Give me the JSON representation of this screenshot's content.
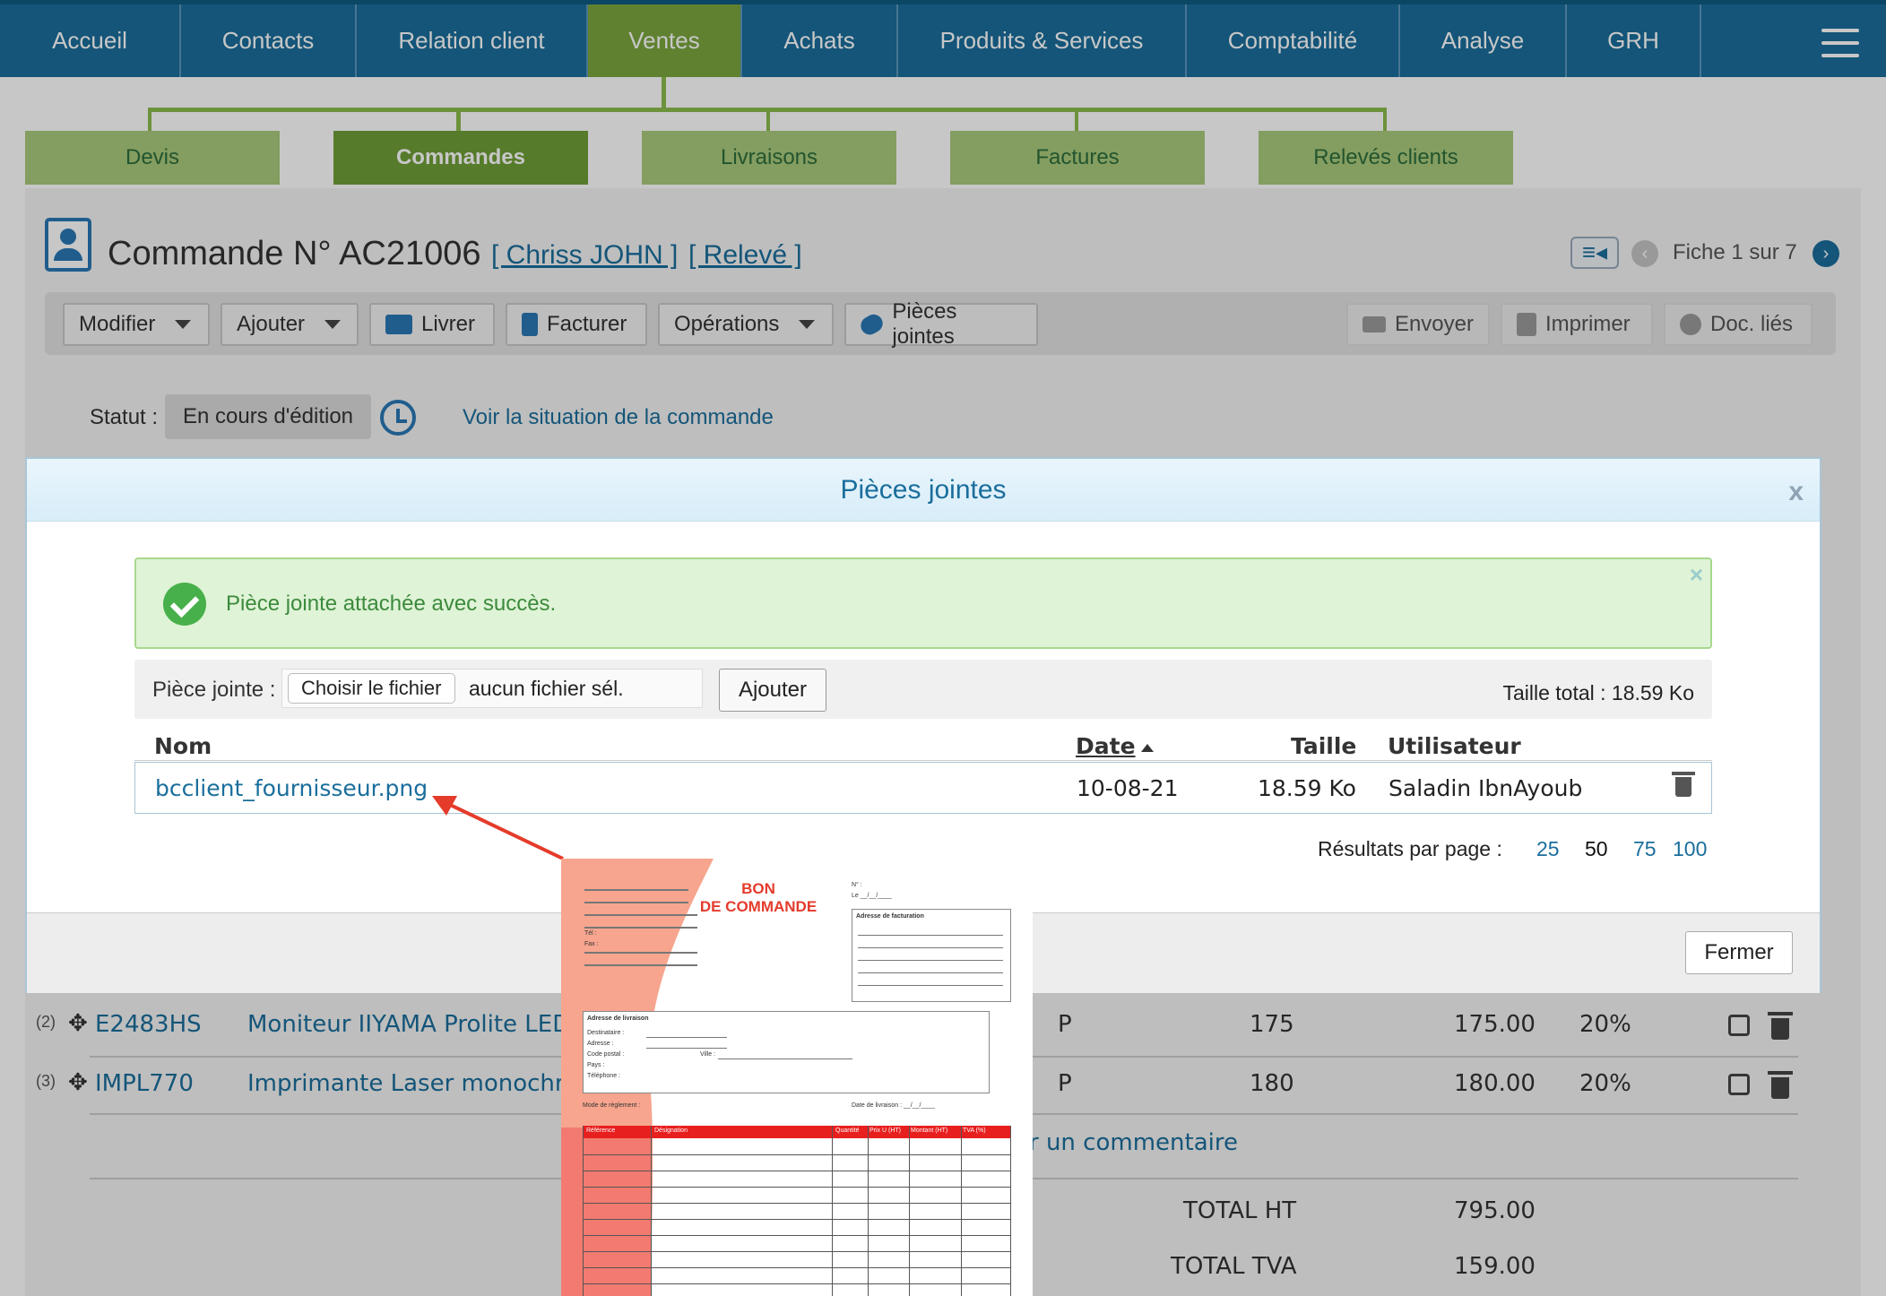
{
  "nav": {
    "items": [
      {
        "label": "Accueil",
        "active": false
      },
      {
        "label": "Contacts",
        "active": false
      },
      {
        "label": "Relation client",
        "active": false
      },
      {
        "label": "Ventes",
        "active": true
      },
      {
        "label": "Achats",
        "active": false
      },
      {
        "label": "Produits & Services",
        "active": false
      },
      {
        "label": "Comptabilité",
        "active": false
      },
      {
        "label": "Analyse",
        "active": false
      },
      {
        "label": "GRH",
        "active": false
      }
    ],
    "menu_icon": "hamburger-menu-icon"
  },
  "subtabs": [
    {
      "label": "Devis",
      "active": false
    },
    {
      "label": "Commandes",
      "active": true
    },
    {
      "label": "Livraisons",
      "active": false
    },
    {
      "label": "Factures",
      "active": false
    },
    {
      "label": "Relevés clients",
      "active": false
    }
  ],
  "page": {
    "title": "Commande N° AC21006",
    "client_link": "[ Chriss JOHN ]",
    "releve_link": "[ Relevé ]",
    "record_nav": "Fiche 1 sur 7"
  },
  "toolbar": {
    "modifier": "Modifier",
    "ajouter": "Ajouter",
    "livrer": "Livrer",
    "facturer": "Facturer",
    "operations": "Opérations",
    "pieces_jointes": "Pièces jointes",
    "envoyer": "Envoyer",
    "imprimer": "Imprimer",
    "doc_lies": "Doc. liés"
  },
  "status": {
    "label": "Statut :",
    "value": "En cours d'édition",
    "link": "Voir la situation de la commande"
  },
  "order_lines": [
    {
      "num": "(2)",
      "ref": "E2483HS",
      "designation": "Moniteur IIYAMA Prolite LED –",
      "type": "P",
      "price": "175",
      "total": "175.00",
      "tva": "20%"
    },
    {
      "num": "(3)",
      "ref": "IMPL770",
      "designation": "Imprimante Laser monochrom",
      "type": "P",
      "price": "180",
      "total": "180.00",
      "tva": "20%"
    }
  ],
  "comment_link_fragment": "r un commentaire",
  "totals": [
    {
      "label": "TOTAL HT",
      "value": "795.00"
    },
    {
      "label": "TOTAL TVA",
      "value": "159.00"
    }
  ],
  "modal": {
    "title": "Pièces jointes",
    "close": "x",
    "alert_text": "Pièce jointe attachée avec succès.",
    "alert_close": "×",
    "upload_label": "Pièce jointe :",
    "choose_file": "Choisir le fichier",
    "no_file": "aucun fichier sél.",
    "add_button": "Ajouter",
    "total_size": "Taille total : 18.59 Ko",
    "columns": {
      "name": "Nom",
      "date": "Date",
      "size": "Taille",
      "user": "Utilisateur"
    },
    "files": [
      {
        "name": "bcclient_fournisseur.png",
        "date": "10-08-21",
        "size": "18.59 Ko",
        "user": "Saladin IbnAyoub"
      }
    ],
    "results_label": "Résultats par page :",
    "page_sizes": [
      "25",
      "50",
      "75",
      "100"
    ],
    "page_size_current": "50",
    "close_button": "Fermer"
  },
  "thumbnail": {
    "title_line1": "BON",
    "title_line2": "DE COMMANDE",
    "billing_address": "Adresse de facturation",
    "delivery_address": "Adresse de livraison",
    "fields": [
      "Destinataire :",
      "Adresse :",
      "Code postal :",
      "Ville :",
      "Pays :",
      "Téléphone :"
    ],
    "payment": "Mode de règlement :",
    "delivery_date": "Date de livraison : __/__/____",
    "tel": "Tél :",
    "fax": "Fax :",
    "num": "N° :",
    "le": "Le __/__/____",
    "table_headers": [
      "Référence",
      "Désignation",
      "Quantité",
      "Prix U (HT)",
      "Montant (HT)",
      "TVA (%)"
    ]
  },
  "colors": {
    "nav_bg": "#1a6e9c",
    "nav_active": "#7aa63e",
    "link": "#1a6e9c",
    "success": "#47b04b",
    "arrow": "#e53b2a"
  }
}
